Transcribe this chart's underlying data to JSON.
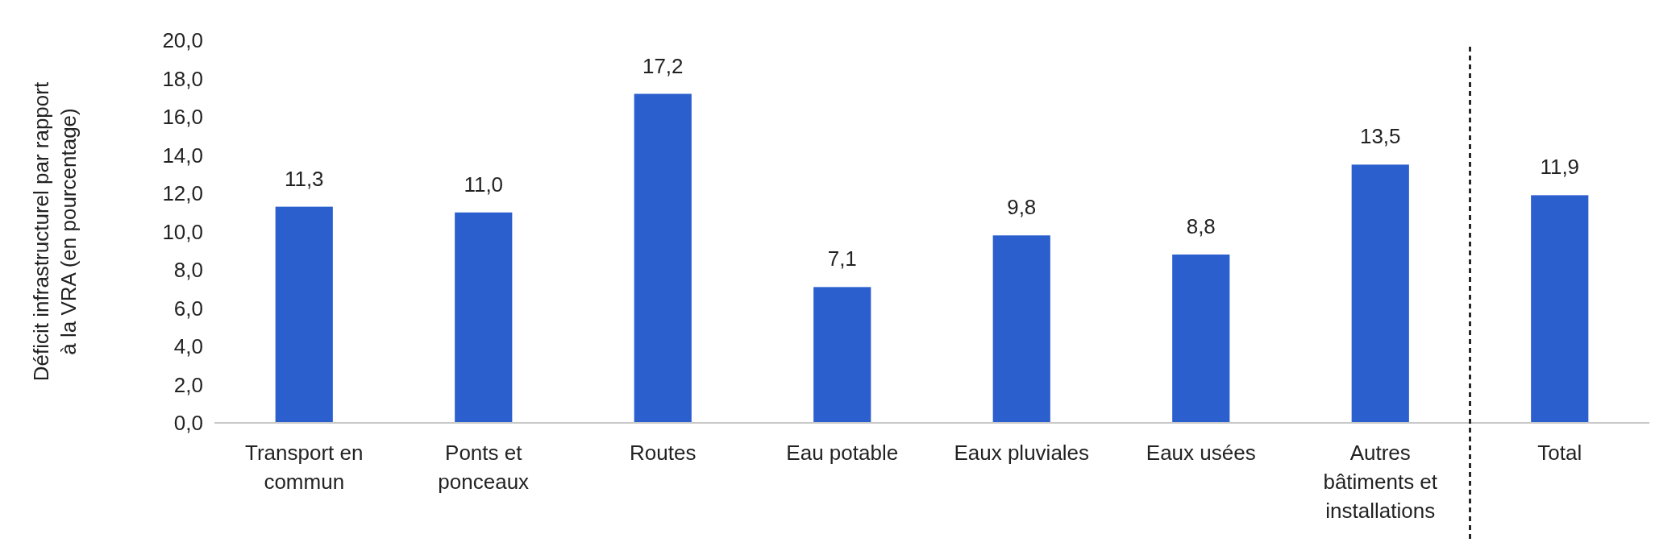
{
  "chart_data": {
    "type": "bar",
    "ylabel": "Déficit infrastructurel par rapport\nà la VRA (en pourcentage)",
    "categories": [
      "Transport en\ncommun",
      "Ponts et\nponceaux",
      "Routes",
      "Eau potable",
      "Eaux pluviales",
      "Eaux usées",
      "Autres\nbâtiments et\ninstallations",
      "Total"
    ],
    "values": [
      11.3,
      11.0,
      17.2,
      7.1,
      9.8,
      8.8,
      13.5,
      11.9
    ],
    "value_labels": [
      "11,3",
      "11,0",
      "17,2",
      "7,1",
      "9,8",
      "8,8",
      "13,5",
      "11,9"
    ],
    "color": "#2b5fce",
    "ylim": [
      0,
      20
    ],
    "yticks": [
      {
        "value": 0,
        "label": "0,0"
      },
      {
        "value": 2,
        "label": "2,0"
      },
      {
        "value": 4,
        "label": "4,0"
      },
      {
        "value": 6,
        "label": "6,0"
      },
      {
        "value": 8,
        "label": "8,0"
      },
      {
        "value": 10,
        "label": "10,0"
      },
      {
        "value": 12,
        "label": "12,0"
      },
      {
        "value": 14,
        "label": "14,0"
      },
      {
        "value": 16,
        "label": "16,0"
      },
      {
        "value": 18,
        "label": "18,0"
      },
      {
        "value": 20,
        "label": "20,0"
      }
    ],
    "grid": false
  }
}
